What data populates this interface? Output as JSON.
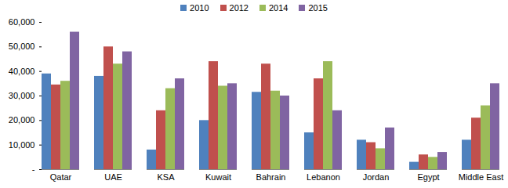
{
  "chart_data": {
    "type": "bar",
    "categories": [
      "Qatar",
      "UAE",
      "KSA",
      "Kuwait",
      "Bahrain",
      "Lebanon",
      "Jordan",
      "Egypt",
      "Middle East"
    ],
    "series": [
      {
        "name": "2010",
        "color": "#4f81bd",
        "values": [
          39000,
          38000,
          8000,
          20000,
          31500,
          15000,
          12000,
          3000,
          12000
        ]
      },
      {
        "name": "2012",
        "color": "#c0504d",
        "values": [
          34500,
          50000,
          24000,
          44000,
          43000,
          37000,
          11000,
          6000,
          21000
        ]
      },
      {
        "name": "2014",
        "color": "#9bbb59",
        "values": [
          36000,
          43000,
          33000,
          34000,
          32000,
          44000,
          8500,
          5000,
          26000
        ]
      },
      {
        "name": "2015",
        "color": "#8064a2",
        "values": [
          56000,
          48000,
          37000,
          35000,
          30000,
          24000,
          17000,
          7000,
          35000
        ]
      }
    ],
    "ylim": [
      0,
      60000
    ],
    "yticks": [
      {
        "value": 0,
        "label": "-"
      },
      {
        "value": 10000,
        "label": "10,000"
      },
      {
        "value": 20000,
        "label": "20,000"
      },
      {
        "value": 30000,
        "label": "30,000"
      },
      {
        "value": 40000,
        "label": "40,000"
      },
      {
        "value": 50000,
        "label": "50,000"
      },
      {
        "value": 60000,
        "label": "60,000"
      }
    ],
    "grid": false,
    "legend": "top"
  }
}
